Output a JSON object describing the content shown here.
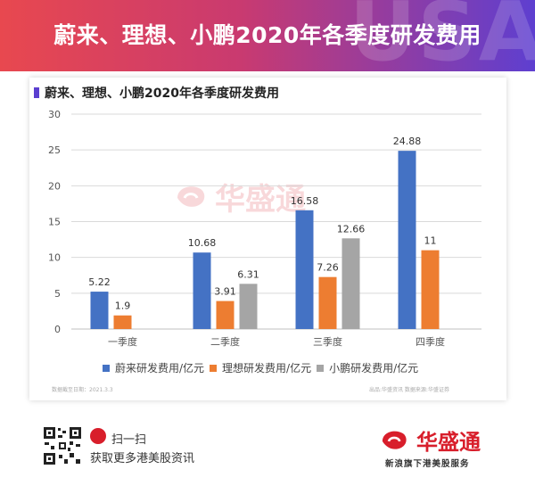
{
  "banner": {
    "title": "蔚来、理想、小鹏2020年各季度研发费用",
    "bg_text": "USA"
  },
  "chart_title": "蔚来、理想、小鹏2020年各季度研发费用",
  "watermark": "华盛通",
  "source_left": "数据截至日期：2021.3.3",
  "source_right": "出品:华盛资讯       数据来源:华盛证券",
  "footer": {
    "scan_label": "扫一扫",
    "scan_desc": "获取更多港美股资讯",
    "brand_name": "华盛通",
    "brand_tagline": "新浪旗下港美股服务"
  },
  "chart_data": {
    "type": "bar",
    "title": "蔚来、理想、小鹏2020年各季度研发费用",
    "categories": [
      "一季度",
      "二季度",
      "三季度",
      "四季度"
    ],
    "series": [
      {
        "name": "蔚来研发费用/亿元",
        "color": "#4472c4",
        "values": [
          5.22,
          10.68,
          16.58,
          24.88
        ]
      },
      {
        "name": "理想研发费用/亿元",
        "color": "#ed7d31",
        "values": [
          1.9,
          3.91,
          7.26,
          11
        ]
      },
      {
        "name": "小鹏研发费用/亿元",
        "color": "#a5a5a5",
        "values": [
          null,
          6.31,
          12.66,
          null
        ]
      }
    ],
    "ylim": [
      0,
      30
    ],
    "yticks": [
      0,
      5,
      10,
      15,
      20,
      25,
      30
    ],
    "grid": true,
    "legend": "bottom"
  }
}
